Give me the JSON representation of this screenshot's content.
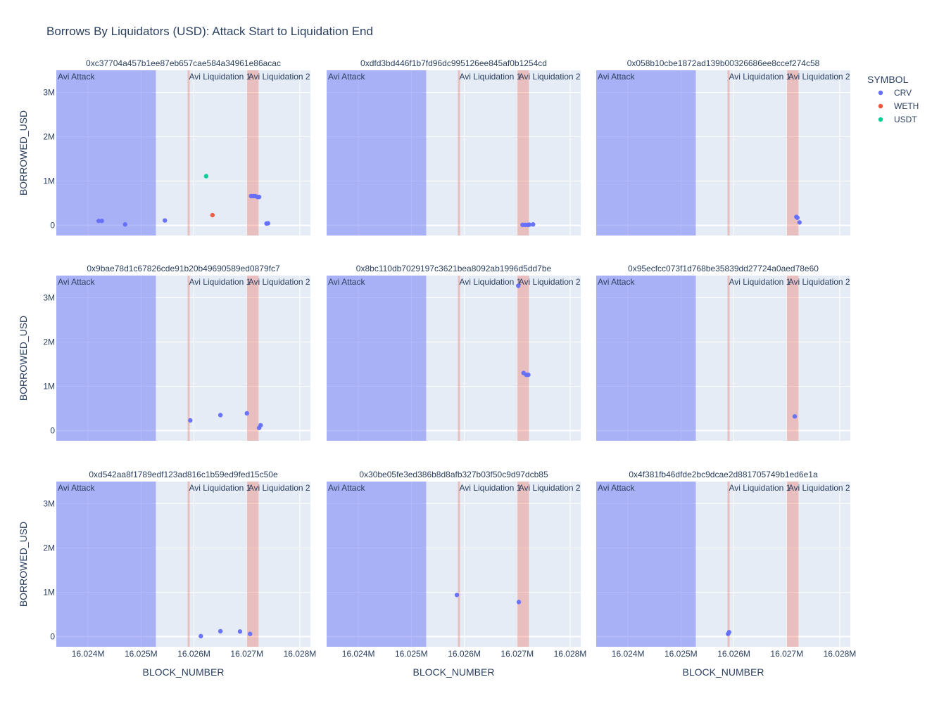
{
  "chart_data": {
    "type": "scatter",
    "title": "Borrows By Liquidators (USD): Attack Start to Liquidation End",
    "xlabel": "BLOCK_NUMBER",
    "ylabel": "BORROWED_USD",
    "xlim": [
      16023400,
      16028200
    ],
    "ylim": [
      -230000,
      3500000
    ],
    "x_ticks": [
      16024000,
      16025000,
      16026000,
      16027000,
      16028000
    ],
    "x_tick_labels": [
      "16.024M",
      "16.025M",
      "16.026M",
      "16.027M",
      "16.028M"
    ],
    "y_ticks": [
      0,
      1000000,
      2000000,
      3000000
    ],
    "y_tick_labels": [
      "0",
      "1M",
      "2M",
      "3M"
    ],
    "grid": true,
    "legend": {
      "title": "SYMBOL",
      "position": "top-right",
      "entries": [
        {
          "name": "CRV",
          "color": "#636efa"
        },
        {
          "name": "WETH",
          "color": "#ef553b"
        },
        {
          "name": "USDT",
          "color": "#00cc96"
        }
      ]
    },
    "regions": [
      {
        "label": "Avi Attack",
        "x0": 16023400,
        "x1": 16025280,
        "color": "#6c75f5",
        "opacity": 0.5
      },
      {
        "label": "Avi Liquidation 1",
        "x0": 16025880,
        "x1": 16025920,
        "color": "#ef553b",
        "opacity": 0.3
      },
      {
        "label": "Avi Liquidation 2",
        "x0": 16027000,
        "x1": 16027220,
        "color": "#ef553b",
        "opacity": 0.3
      }
    ],
    "panels": [
      {
        "subtitle": "0xc37704a457b1ee87eb657cae584a34961e86acac",
        "points": [
          {
            "x": 16024200,
            "y": 100000,
            "symbol": "CRV"
          },
          {
            "x": 16024260,
            "y": 100000,
            "symbol": "CRV"
          },
          {
            "x": 16024700,
            "y": 20000,
            "symbol": "CRV"
          },
          {
            "x": 16025450,
            "y": 110000,
            "symbol": "CRV"
          },
          {
            "x": 16026350,
            "y": 230000,
            "symbol": "WETH"
          },
          {
            "x": 16026230,
            "y": 1110000,
            "symbol": "USDT"
          },
          {
            "x": 16027080,
            "y": 660000,
            "symbol": "CRV"
          },
          {
            "x": 16027120,
            "y": 660000,
            "symbol": "CRV"
          },
          {
            "x": 16027160,
            "y": 660000,
            "symbol": "CRV"
          },
          {
            "x": 16027200,
            "y": 640000,
            "symbol": "CRV"
          },
          {
            "x": 16027230,
            "y": 640000,
            "symbol": "CRV"
          },
          {
            "x": 16027370,
            "y": 40000,
            "symbol": "CRV"
          },
          {
            "x": 16027400,
            "y": 45000,
            "symbol": "CRV"
          }
        ]
      },
      {
        "subtitle": "0xdfd3bd446f1b7fd96dc995126ee845af0b1254cd",
        "points": [
          {
            "x": 16027100,
            "y": 10000,
            "symbol": "CRV"
          },
          {
            "x": 16027150,
            "y": 10000,
            "symbol": "CRV"
          },
          {
            "x": 16027200,
            "y": 10000,
            "symbol": "CRV"
          },
          {
            "x": 16027230,
            "y": 15000,
            "symbol": "CRV"
          },
          {
            "x": 16027300,
            "y": 20000,
            "symbol": "CRV"
          }
        ]
      },
      {
        "subtitle": "0x058b10cbe1872ad139b00326686ee8ccef274c58",
        "points": [
          {
            "x": 16027180,
            "y": 190000,
            "symbol": "CRV"
          },
          {
            "x": 16027200,
            "y": 170000,
            "symbol": "CRV"
          },
          {
            "x": 16027240,
            "y": 65000,
            "symbol": "CRV"
          }
        ]
      },
      {
        "subtitle": "0x9bae78d1c67826cde91b20b49690589ed0879fc7",
        "points": [
          {
            "x": 16025930,
            "y": 230000,
            "symbol": "CRV"
          },
          {
            "x": 16026500,
            "y": 350000,
            "symbol": "CRV"
          },
          {
            "x": 16027000,
            "y": 390000,
            "symbol": "CRV"
          },
          {
            "x": 16027230,
            "y": 60000,
            "symbol": "CRV"
          },
          {
            "x": 16027260,
            "y": 120000,
            "symbol": "CRV"
          }
        ]
      },
      {
        "subtitle": "0x8bc110db7029197c3621bea8092ab1996d5dd7be",
        "points": [
          {
            "x": 16027020,
            "y": 3270000,
            "symbol": "CRV"
          },
          {
            "x": 16027120,
            "y": 1300000,
            "symbol": "CRV"
          },
          {
            "x": 16027170,
            "y": 1260000,
            "symbol": "CRV"
          },
          {
            "x": 16027210,
            "y": 1260000,
            "symbol": "CRV"
          }
        ]
      },
      {
        "subtitle": "0x95ecfcc073f1d768be35839dd27724a0aed78e60",
        "points": [
          {
            "x": 16027150,
            "y": 320000,
            "symbol": "CRV"
          }
        ]
      },
      {
        "subtitle": "0xd542aa8f1789edf123ad816c1b59ed9fed15c50e",
        "points": [
          {
            "x": 16026130,
            "y": 10000,
            "symbol": "CRV"
          },
          {
            "x": 16026500,
            "y": 120000,
            "symbol": "CRV"
          },
          {
            "x": 16026870,
            "y": 115000,
            "symbol": "CRV"
          },
          {
            "x": 16027060,
            "y": 60000,
            "symbol": "CRV"
          }
        ]
      },
      {
        "subtitle": "0x30be05fe3ed386b8d8afb327b03f50c9d97dcb85",
        "points": [
          {
            "x": 16025860,
            "y": 940000,
            "symbol": "CRV"
          },
          {
            "x": 16027030,
            "y": 780000,
            "symbol": "CRV"
          }
        ]
      },
      {
        "subtitle": "0x4f381fb46dfde2bc9dcae2d881705749b1ed6e1a",
        "points": [
          {
            "x": 16025890,
            "y": 60000,
            "symbol": "CRV"
          },
          {
            "x": 16025910,
            "y": 100000,
            "symbol": "CRV"
          }
        ]
      }
    ]
  }
}
